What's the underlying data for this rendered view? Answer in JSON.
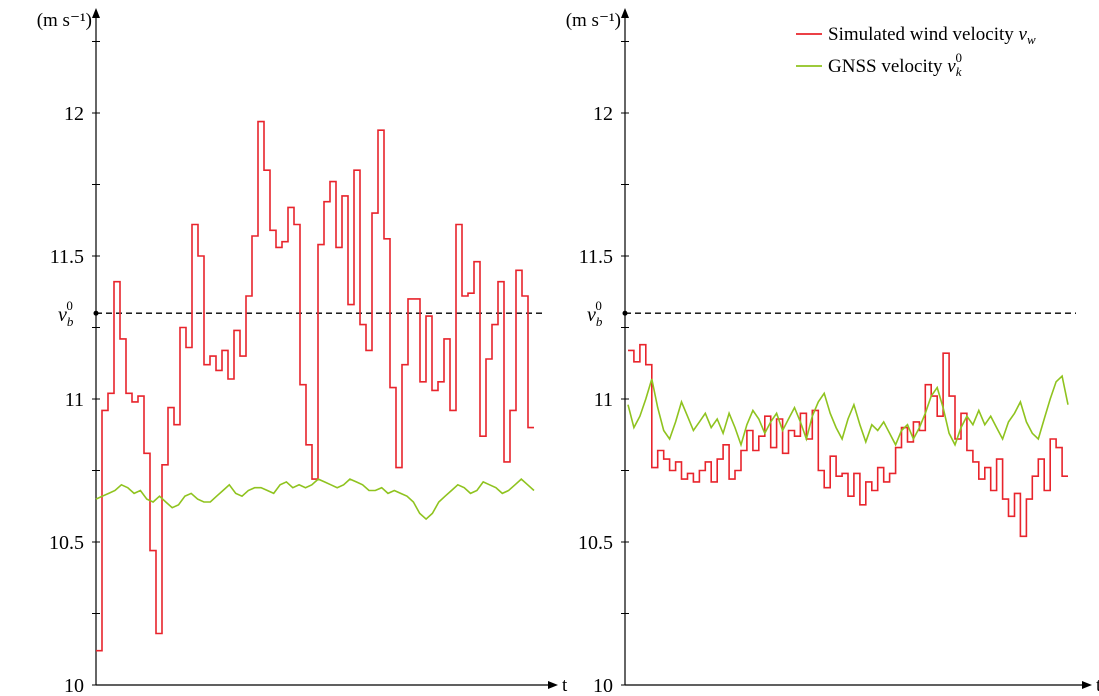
{
  "chart_data": [
    {
      "type": "line",
      "ylabel": "(m s⁻¹)",
      "xlabel": "t",
      "ylim": [
        10,
        12.5
      ],
      "yticks": [
        10,
        10.5,
        11,
        11.5,
        12
      ],
      "reference": {
        "label_base": "v",
        "label_sub": "b",
        "label_sup": "0",
        "value": 11.3
      },
      "series": [
        {
          "name": "Simulated wind velocity v_w",
          "color": "#e8242c",
          "step": true,
          "values": [
            10.12,
            10.96,
            11.02,
            11.41,
            11.21,
            11.02,
            10.99,
            11.01,
            10.81,
            10.47,
            10.18,
            10.77,
            10.97,
            10.91,
            11.25,
            11.18,
            11.61,
            11.5,
            11.12,
            11.15,
            11.1,
            11.17,
            11.07,
            11.24,
            11.15,
            11.36,
            11.57,
            11.97,
            11.8,
            11.59,
            11.53,
            11.55,
            11.67,
            11.61,
            11.05,
            10.84,
            10.72,
            11.54,
            11.69,
            11.76,
            11.53,
            11.71,
            11.33,
            11.8,
            11.26,
            11.17,
            11.65,
            11.94,
            11.56,
            11.04,
            10.76,
            11.12,
            11.35,
            11.35,
            11.06,
            11.29,
            11.03,
            11.06,
            11.21,
            10.96,
            11.61,
            11.36,
            11.37,
            11.48,
            10.87,
            11.14,
            11.26,
            11.41,
            10.78,
            10.96,
            11.45,
            11.36,
            10.9
          ]
        },
        {
          "name": "GNSS velocity v_k^0",
          "color": "#8fc31f",
          "step": false,
          "values": [
            10.65,
            10.66,
            10.67,
            10.68,
            10.7,
            10.69,
            10.67,
            10.68,
            10.65,
            10.64,
            10.66,
            10.64,
            10.62,
            10.63,
            10.66,
            10.67,
            10.65,
            10.64,
            10.64,
            10.66,
            10.68,
            10.7,
            10.67,
            10.66,
            10.68,
            10.69,
            10.69,
            10.68,
            10.67,
            10.7,
            10.71,
            10.69,
            10.7,
            10.69,
            10.7,
            10.72,
            10.71,
            10.7,
            10.69,
            10.7,
            10.72,
            10.71,
            10.7,
            10.68,
            10.68,
            10.69,
            10.67,
            10.68,
            10.67,
            10.66,
            10.64,
            10.6,
            10.58,
            10.6,
            10.64,
            10.66,
            10.68,
            10.7,
            10.69,
            10.67,
            10.68,
            10.71,
            10.7,
            10.69,
            10.67,
            10.68,
            10.7,
            10.72,
            10.7,
            10.68
          ]
        }
      ]
    },
    {
      "type": "line",
      "ylabel": "(m s⁻¹)",
      "xlabel": "t",
      "ylim": [
        10,
        12.5
      ],
      "yticks": [
        10,
        10.5,
        11,
        11.5,
        12
      ],
      "reference": {
        "label_base": "v",
        "label_sub": "b",
        "label_sup": "0",
        "value": 11.3
      },
      "legend": {
        "placement": "top-right"
      },
      "series": [
        {
          "name": "Simulated wind velocity v_w",
          "legend_text": "Simulated wind velocity ",
          "legend_math_base": "v",
          "legend_math_sub": "w",
          "legend_math_sup": "",
          "color": "#e8242c",
          "step": true,
          "values": [
            11.17,
            11.13,
            11.19,
            11.12,
            10.76,
            10.82,
            10.79,
            10.75,
            10.78,
            10.72,
            10.74,
            10.71,
            10.75,
            10.78,
            10.71,
            10.79,
            10.84,
            10.72,
            10.75,
            10.82,
            10.89,
            10.82,
            10.87,
            10.94,
            10.83,
            10.93,
            10.81,
            10.89,
            10.87,
            10.95,
            10.86,
            10.96,
            10.75,
            10.69,
            10.8,
            10.73,
            10.74,
            10.66,
            10.74,
            10.63,
            10.71,
            10.68,
            10.76,
            10.71,
            10.74,
            10.83,
            10.9,
            10.85,
            10.92,
            10.89,
            11.05,
            11.01,
            10.94,
            11.16,
            11.01,
            10.86,
            10.95,
            10.82,
            10.78,
            10.72,
            10.76,
            10.68,
            10.79,
            10.65,
            10.59,
            10.67,
            10.52,
            10.65,
            10.73,
            10.79,
            10.68,
            10.86,
            10.83,
            10.73
          ]
        },
        {
          "name": "GNSS velocity v_k^0",
          "legend_text": "GNSS velocity ",
          "legend_math_base": "v",
          "legend_math_sub": "k",
          "legend_math_sup": "0",
          "color": "#8fc31f",
          "step": false,
          "values": [
            10.98,
            10.9,
            10.94,
            11.0,
            11.07,
            10.97,
            10.89,
            10.86,
            10.92,
            10.99,
            10.94,
            10.89,
            10.92,
            10.95,
            10.9,
            10.93,
            10.88,
            10.95,
            10.9,
            10.84,
            10.91,
            10.96,
            10.93,
            10.88,
            10.92,
            10.95,
            10.89,
            10.93,
            10.97,
            10.92,
            10.86,
            10.94,
            10.99,
            11.02,
            10.95,
            10.9,
            10.86,
            10.93,
            10.98,
            10.91,
            10.85,
            10.91,
            10.89,
            10.92,
            10.88,
            10.84,
            10.89,
            10.91,
            10.86,
            10.9,
            10.95,
            11.01,
            11.04,
            10.97,
            10.88,
            10.84,
            10.9,
            10.94,
            10.91,
            10.96,
            10.91,
            10.94,
            10.9,
            10.86,
            10.92,
            10.95,
            10.99,
            10.92,
            10.88,
            10.86,
            10.93,
            11.0,
            11.06,
            11.08,
            10.98
          ]
        }
      ]
    }
  ]
}
